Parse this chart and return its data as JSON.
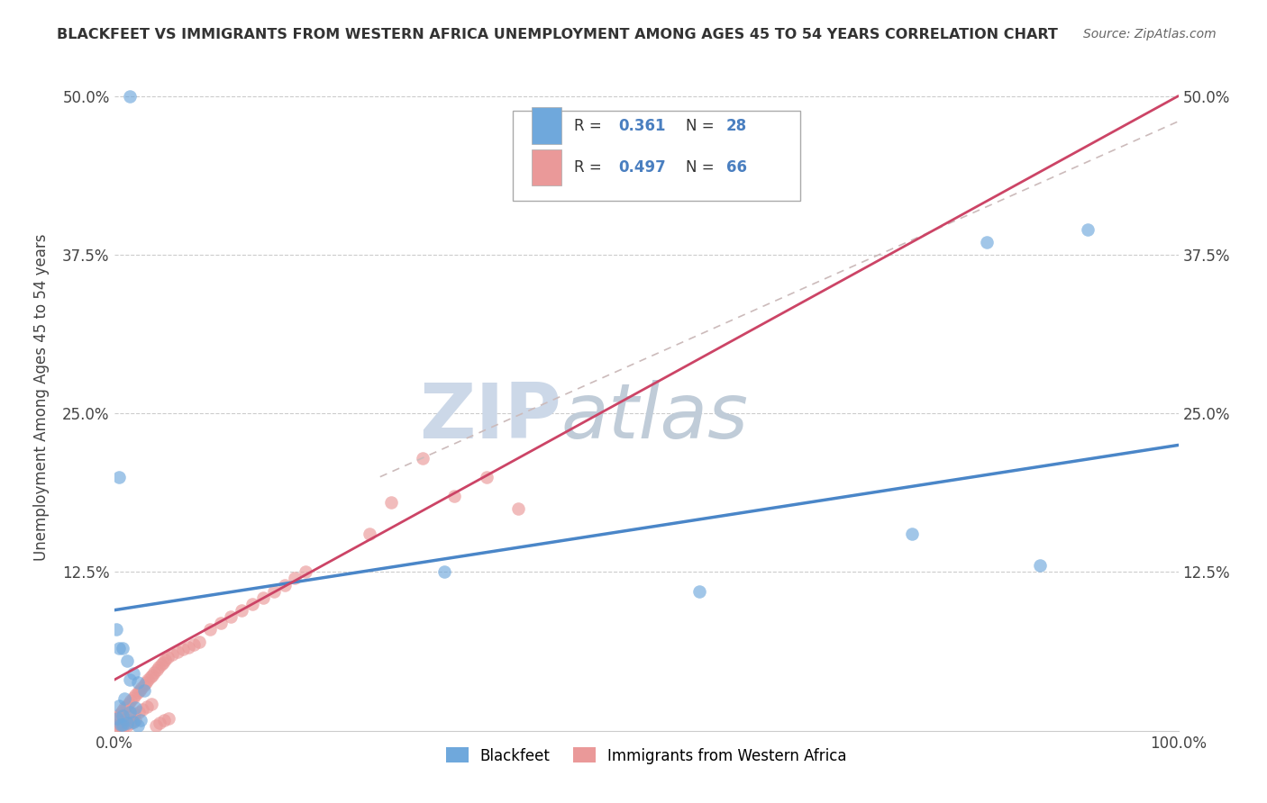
{
  "title": "BLACKFEET VS IMMIGRANTS FROM WESTERN AFRICA UNEMPLOYMENT AMONG AGES 45 TO 54 YEARS CORRELATION CHART",
  "source": "Source: ZipAtlas.com",
  "ylabel": "Unemployment Among Ages 45 to 54 years",
  "xlim": [
    0.0,
    1.0
  ],
  "ylim": [
    0.0,
    0.525
  ],
  "yticks": [
    0.0,
    0.125,
    0.25,
    0.375,
    0.5
  ],
  "yticklabels_left": [
    "",
    "12.5%",
    "25.0%",
    "37.5%",
    "50.0%"
  ],
  "yticklabels_right": [
    "",
    "12.5%",
    "25.0%",
    "37.5%",
    "50.0%"
  ],
  "xticklabels": [
    "0.0%",
    "100.0%"
  ],
  "xticks": [
    0.0,
    1.0
  ],
  "blackfeet_R": 0.361,
  "blackfeet_N": 28,
  "western_africa_R": 0.497,
  "western_africa_N": 66,
  "blackfeet_color": "#6fa8dc",
  "western_africa_color": "#ea9999",
  "blackfeet_line_color": "#4a86c8",
  "western_africa_line_color": "#cc4466",
  "western_africa_dash_color": "#ccaaaa",
  "watermark_zip": "ZIP",
  "watermark_atlas": "atlas",
  "watermark_color": "#d0dff0",
  "legend_label_1": "Blackfeet",
  "legend_label_2": "Immigrants from Western Africa",
  "blackfeet_x": [
    0.015,
    0.005,
    0.002,
    0.008,
    0.012,
    0.018,
    0.022,
    0.028,
    0.01,
    0.005,
    0.02,
    0.015,
    0.008,
    0.003,
    0.025,
    0.018,
    0.012,
    0.006,
    0.022,
    0.31,
    0.55,
    0.75,
    0.82,
    0.915,
    0.87,
    0.005,
    0.015,
    0.008
  ],
  "blackfeet_y": [
    0.5,
    0.2,
    0.08,
    0.065,
    0.055,
    0.045,
    0.038,
    0.032,
    0.025,
    0.02,
    0.018,
    0.015,
    0.012,
    0.01,
    0.008,
    0.007,
    0.006,
    0.005,
    0.004,
    0.125,
    0.11,
    0.155,
    0.385,
    0.395,
    0.13,
    0.065,
    0.04,
    0.005
  ],
  "western_africa_x": [
    0.002,
    0.004,
    0.006,
    0.008,
    0.01,
    0.012,
    0.014,
    0.016,
    0.018,
    0.02,
    0.022,
    0.024,
    0.026,
    0.028,
    0.03,
    0.032,
    0.034,
    0.036,
    0.038,
    0.04,
    0.042,
    0.044,
    0.046,
    0.048,
    0.05,
    0.055,
    0.06,
    0.065,
    0.07,
    0.075,
    0.08,
    0.09,
    0.1,
    0.11,
    0.12,
    0.13,
    0.14,
    0.15,
    0.16,
    0.17,
    0.18,
    0.003,
    0.007,
    0.011,
    0.015,
    0.019,
    0.023,
    0.027,
    0.031,
    0.035,
    0.039,
    0.043,
    0.047,
    0.051,
    0.002,
    0.005,
    0.008,
    0.012,
    0.016,
    0.02,
    0.24,
    0.26,
    0.29,
    0.32,
    0.35,
    0.38
  ],
  "western_africa_y": [
    0.01,
    0.012,
    0.014,
    0.016,
    0.018,
    0.02,
    0.022,
    0.024,
    0.026,
    0.028,
    0.03,
    0.032,
    0.034,
    0.036,
    0.038,
    0.04,
    0.042,
    0.044,
    0.046,
    0.048,
    0.05,
    0.052,
    0.054,
    0.056,
    0.058,
    0.06,
    0.062,
    0.064,
    0.066,
    0.068,
    0.07,
    0.08,
    0.085,
    0.09,
    0.095,
    0.1,
    0.105,
    0.11,
    0.115,
    0.12,
    0.125,
    0.005,
    0.007,
    0.009,
    0.011,
    0.013,
    0.015,
    0.017,
    0.019,
    0.021,
    0.004,
    0.006,
    0.008,
    0.01,
    0.003,
    0.005,
    0.002,
    0.004,
    0.006,
    0.008,
    0.155,
    0.18,
    0.215,
    0.185,
    0.2,
    0.175
  ]
}
